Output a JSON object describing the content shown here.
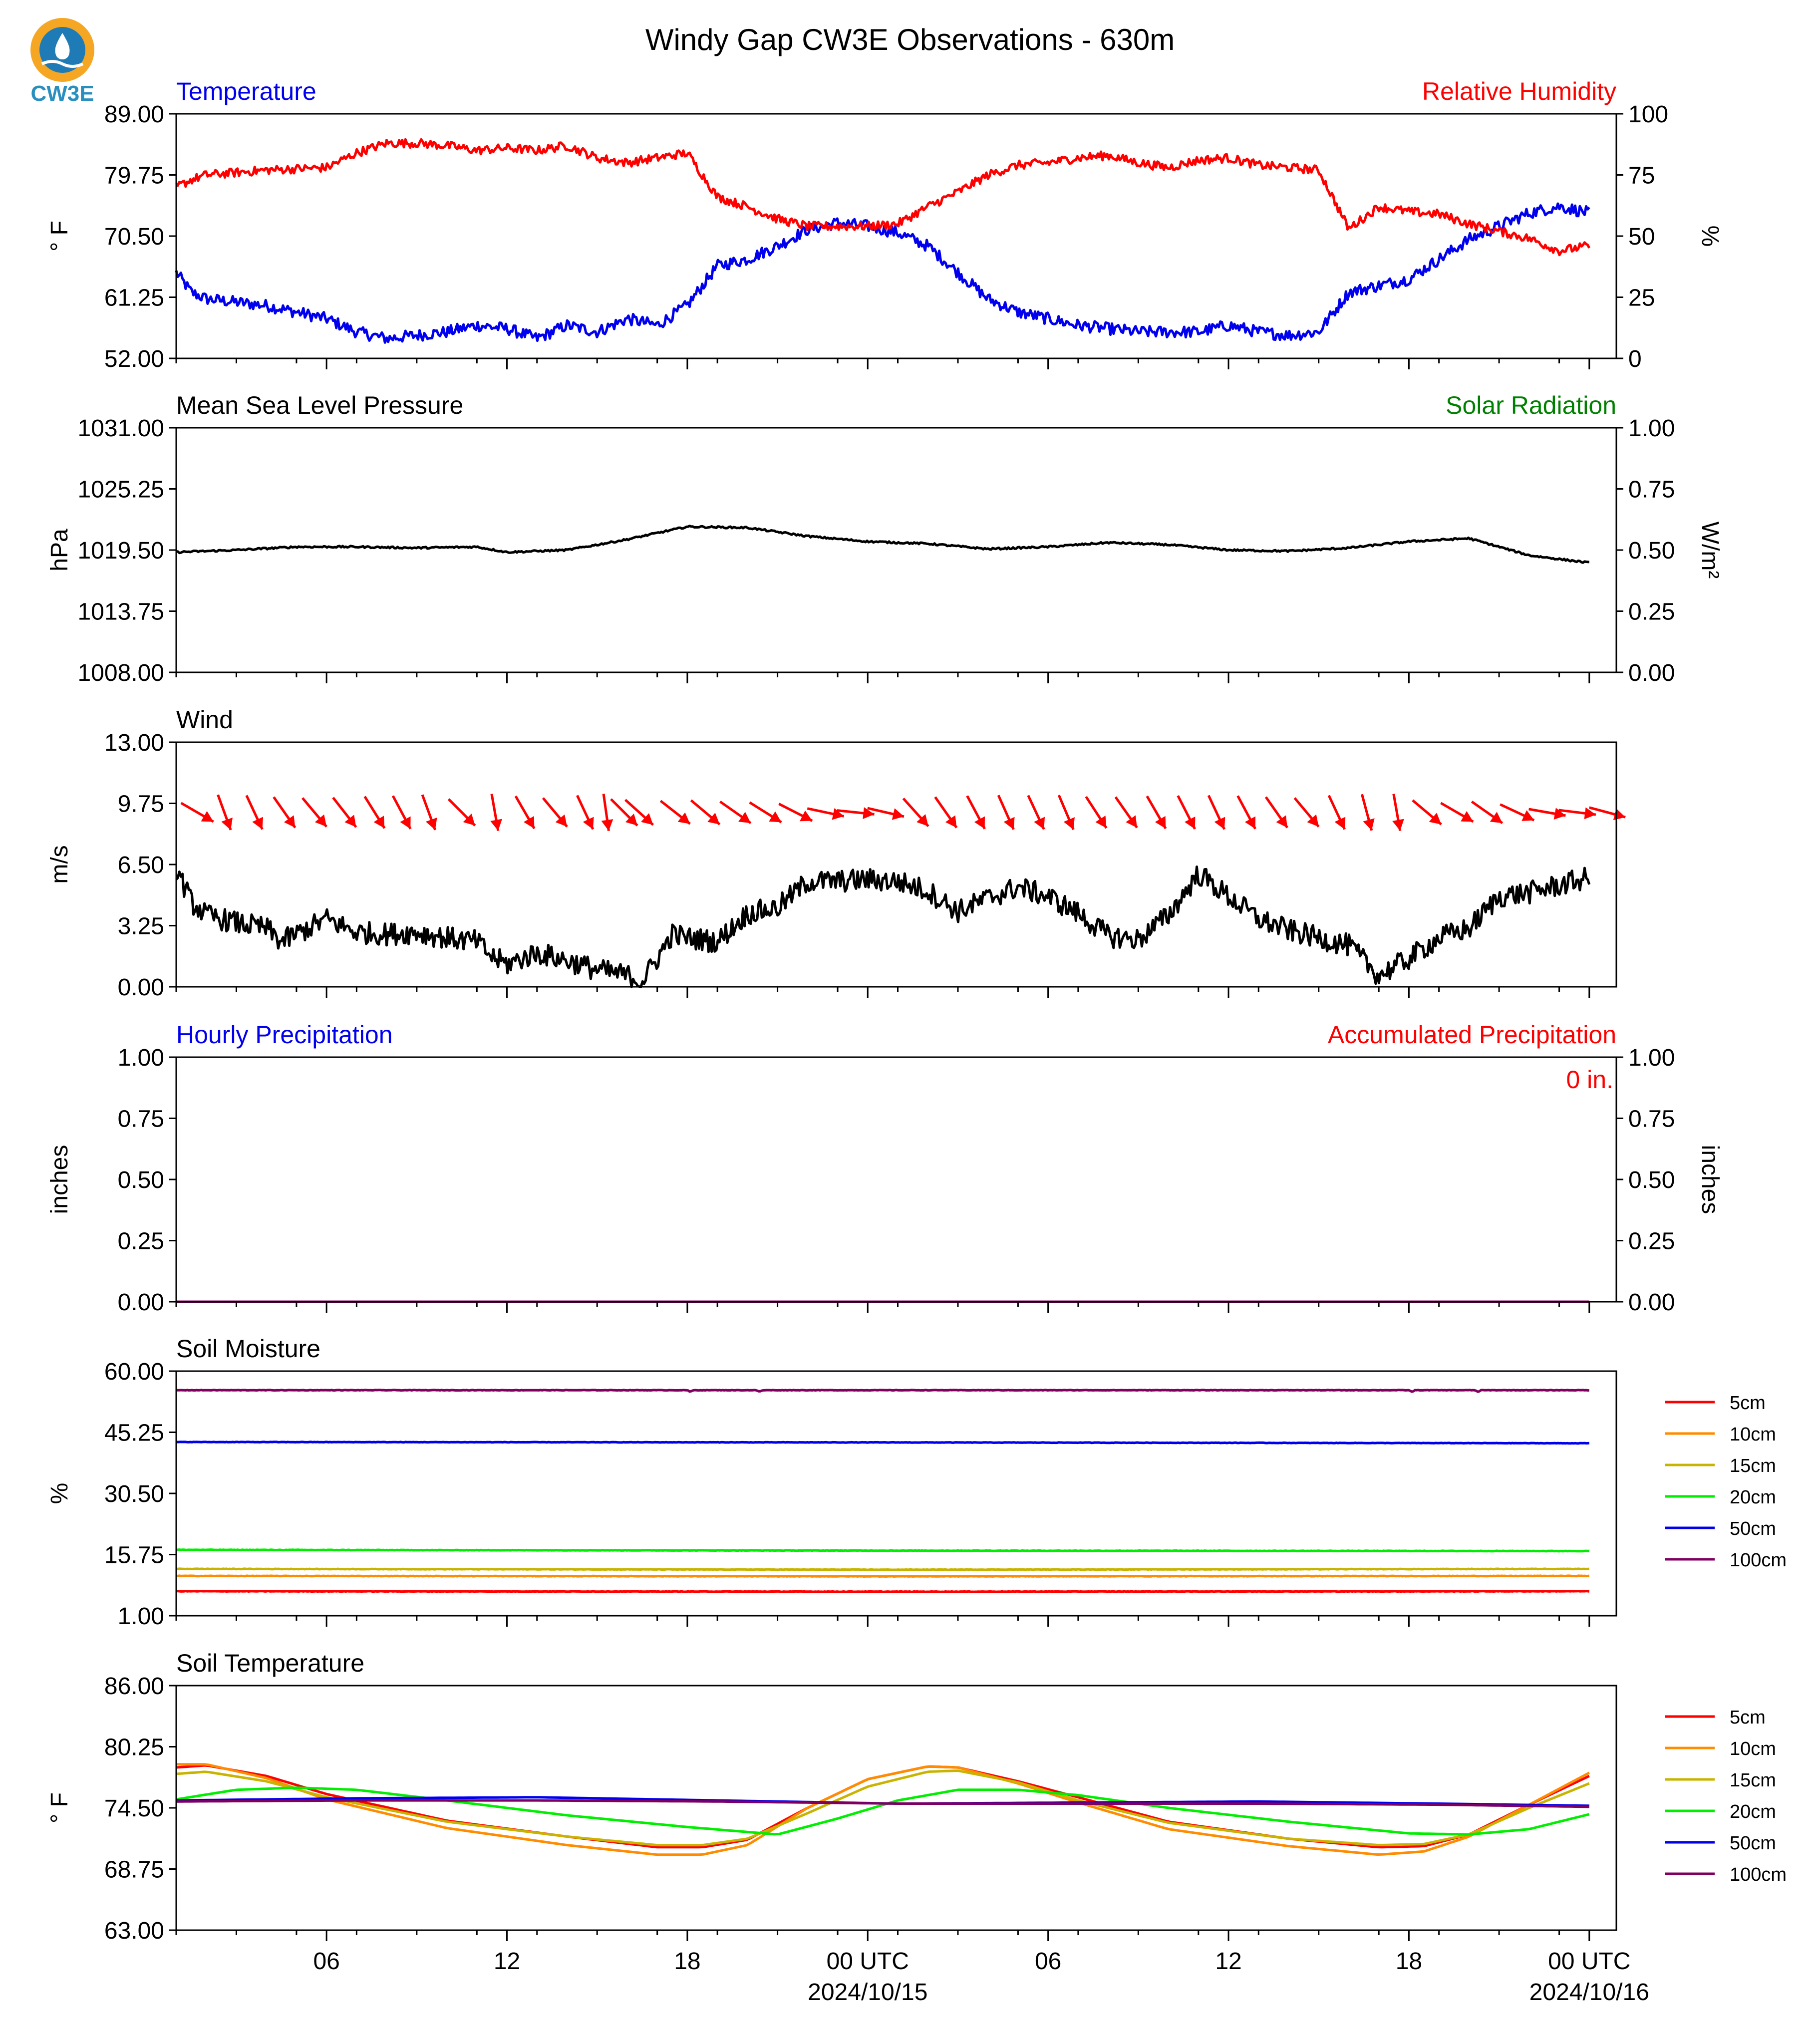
{
  "logo": {
    "text": "CW3E",
    "colors": {
      "ring": "#f5a623",
      "inner": "#1f7bb6",
      "text": "#2a8fbf"
    }
  },
  "title": "Windy Gap CW3E Observations - 630m",
  "colors": {
    "blue": "#0000ee",
    "red": "#ff0000",
    "green": "#008000",
    "black": "#000000",
    "soil": {
      "5cm": "#ff0000",
      "10cm": "#ff8c00",
      "15cm": "#c8b400",
      "20cm": "#00ee00",
      "50cm": "#0000ee",
      "100cm": "#800060"
    }
  },
  "time_axis": {
    "start_hour": 0,
    "end_hour": 47.9,
    "tick_labels": [
      {
        "hour": 5,
        "label": "06"
      },
      {
        "hour": 11,
        "label": "12"
      },
      {
        "hour": 17,
        "label": "18"
      },
      {
        "hour": 23,
        "label": "00 UTC",
        "date": "2024/10/15"
      },
      {
        "hour": 29,
        "label": "06"
      },
      {
        "hour": 35,
        "label": "12"
      },
      {
        "hour": 41,
        "label": "18"
      },
      {
        "hour": 47,
        "label": "00 UTC",
        "date": "2024/10/16"
      }
    ]
  },
  "chart_data": [
    {
      "id": "temp_rh",
      "type": "line",
      "title_left": "Temperature",
      "title_right": "Relative Humidity",
      "ylabel_left": "° F",
      "ylabel_right": "%",
      "ylim_left": [
        52,
        89
      ],
      "yticks_left": [
        "52.00",
        "61.25",
        "70.50",
        "79.75",
        "89.00"
      ],
      "ylim_right": [
        0,
        100
      ],
      "yticks_right": [
        "0",
        "25",
        "50",
        "75",
        "100"
      ],
      "series": [
        {
          "name": "Temperature",
          "color": "#0000ee",
          "axis": "left",
          "noise": 0.9,
          "x": [
            0,
            0.5,
            1,
            2,
            3,
            4,
            5,
            6,
            7,
            8,
            9,
            10,
            11,
            12,
            13,
            14,
            15,
            16,
            17,
            18,
            19,
            20,
            21,
            22,
            23,
            24,
            25,
            26,
            27,
            28,
            29,
            30,
            31,
            32,
            33,
            34,
            35,
            36,
            37,
            38,
            39,
            40,
            41,
            42,
            43,
            44,
            45,
            46,
            47
          ],
          "y": [
            65,
            62,
            61,
            60.5,
            60,
            59,
            58,
            56,
            55,
            55.5,
            56,
            57,
            56.5,
            55,
            57,
            56,
            58,
            57,
            60,
            66,
            67,
            69,
            71.5,
            72.5,
            72,
            71,
            69,
            65,
            61,
            59,
            58,
            57,
            56.5,
            56,
            56,
            56,
            57,
            56,
            55.5,
            56,
            62,
            63,
            64,
            67,
            70,
            72,
            74,
            75,
            74
          ]
        },
        {
          "name": "Relative Humidity",
          "color": "#ff0000",
          "axis": "right",
          "noise": 1.8,
          "x": [
            0,
            0.5,
            1,
            2,
            3,
            4,
            5,
            6,
            7,
            8,
            9,
            10,
            11,
            12,
            13,
            14,
            15,
            16,
            17,
            18,
            19,
            20,
            21,
            22,
            23,
            24,
            25,
            26,
            27,
            28,
            29,
            30,
            31,
            32,
            33,
            34,
            35,
            36,
            37,
            38,
            39,
            40,
            41,
            42,
            43,
            44,
            45,
            46,
            47
          ],
          "y": [
            70,
            73,
            75,
            76,
            77,
            77.5,
            78,
            84,
            88,
            88,
            87,
            85,
            86,
            85,
            87,
            82,
            80,
            82,
            84,
            66,
            62,
            57,
            54,
            54,
            54,
            55,
            62,
            68,
            75,
            79,
            80,
            82,
            83,
            80,
            78,
            81,
            82,
            79,
            78,
            77,
            53,
            62,
            60,
            59,
            55,
            52,
            49,
            44,
            46
          ]
        }
      ]
    },
    {
      "id": "pressure",
      "type": "line",
      "title_left": "Mean Sea Level Pressure",
      "title_right": "Solar Radiation",
      "ylabel_left": "hPa",
      "ylabel_right": "W/m²",
      "ylim_left": [
        1008,
        1031
      ],
      "yticks_left": [
        "1008.00",
        "1013.75",
        "1019.50",
        "1025.25",
        "1031.00"
      ],
      "ylim_right": [
        0,
        1
      ],
      "yticks_right": [
        "0.00",
        "0.25",
        "0.50",
        "0.75",
        "1.00"
      ],
      "series": [
        {
          "name": "Mean Sea Level Pressure",
          "color": "#000000",
          "axis": "left",
          "noise": 0.08,
          "x": [
            0,
            2,
            4,
            6,
            8,
            10,
            11,
            13,
            15,
            17,
            19,
            21,
            23,
            25,
            27,
            29,
            31,
            33,
            35,
            37,
            39,
            41,
            43,
            45,
            47
          ],
          "y": [
            1019.3,
            1019.5,
            1019.8,
            1019.8,
            1019.7,
            1019.8,
            1019.3,
            1019.5,
            1020.5,
            1021.7,
            1021.6,
            1020.8,
            1020.3,
            1020.1,
            1019.6,
            1019.8,
            1020.2,
            1020.0,
            1019.5,
            1019.4,
            1019.7,
            1020.3,
            1020.6,
            1019.0,
            1018.3
          ]
        }
      ]
    },
    {
      "id": "wind",
      "type": "line",
      "title_left": "Wind",
      "ylabel_left": "m/s",
      "ylim_left": [
        0,
        13
      ],
      "yticks_left": [
        "0.00",
        "3.25",
        "6.50",
        "9.75",
        "13.00"
      ],
      "series": [
        {
          "name": "Wind",
          "color": "#000000",
          "axis": "left",
          "noise": 0.6,
          "x": [
            0,
            0.5,
            1,
            2,
            3,
            3.5,
            4,
            4.5,
            5,
            6,
            7,
            8,
            9,
            10,
            10.5,
            11,
            12,
            13,
            14,
            15,
            15.5,
            16,
            16.5,
            17,
            18,
            19,
            20,
            21,
            22,
            23,
            24,
            25,
            26,
            27,
            28,
            29,
            30,
            31,
            32,
            33,
            34,
            35,
            36,
            37,
            38,
            39,
            40,
            41,
            42,
            43,
            44,
            45,
            46,
            47
          ],
          "y": [
            6.3,
            4.5,
            3.8,
            3.4,
            3.1,
            2.4,
            2.8,
            3.2,
            3.6,
            2.9,
            2.8,
            2.9,
            2.6,
            2.4,
            1.6,
            1.2,
            1.8,
            1.4,
            0.9,
            0.6,
            0.3,
            1.5,
            2.8,
            2.6,
            2.4,
            3.9,
            4.2,
            5.6,
            5.6,
            5.7,
            5.6,
            5.1,
            4.0,
            4.7,
            5.3,
            4.8,
            3.9,
            2.7,
            2.5,
            3.8,
            6.0,
            4.8,
            3.6,
            3.0,
            2.6,
            2.2,
            0.6,
            1.5,
            2.6,
            3.1,
            4.8,
            5.0,
            5.4,
            5.8
          ]
        }
      ],
      "barbs": {
        "color": "#ff0000",
        "speed": 9.75,
        "x": [
          0.7,
          1.6,
          2.6,
          3.6,
          4.6,
          5.6,
          6.6,
          7.5,
          8.4,
          9.5,
          10.6,
          11.6,
          12.6,
          13.6,
          14.3,
          14.9,
          15.4,
          16.6,
          17.6,
          18.6,
          19.6,
          20.6,
          21.6,
          22.6,
          23.6,
          24.6,
          25.6,
          26.6,
          27.6,
          28.6,
          29.6,
          30.6,
          31.6,
          32.6,
          33.6,
          34.6,
          35.6,
          36.6,
          37.6,
          38.6,
          39.6,
          40.6,
          41.6,
          42.6,
          43.6,
          44.6,
          45.6,
          46.6,
          47.6
        ],
        "dir_deg": [
          300,
          340,
          335,
          325,
          320,
          322,
          328,
          332,
          340,
          315,
          350,
          330,
          320,
          335,
          352,
          315,
          312,
          308,
          310,
          305,
          302,
          297,
          282,
          276,
          283,
          318,
          325,
          332,
          336,
          335,
          337,
          327,
          325,
          330,
          333,
          335,
          332,
          325,
          320,
          335,
          345,
          350,
          310,
          300,
          305,
          295,
          280,
          277,
          285
        ]
      }
    },
    {
      "id": "precip",
      "type": "line",
      "title_left": "Hourly Precipitation",
      "title_right": "Accumulated Precipitation",
      "ylabel_left": "inches",
      "ylabel_right": "inches",
      "ylim_left": [
        0,
        1
      ],
      "yticks_left": [
        "0.00",
        "0.25",
        "0.50",
        "0.75",
        "1.00"
      ],
      "ylim_right": [
        0,
        1
      ],
      "yticks_right": [
        "0.00",
        "0.25",
        "0.50",
        "0.75",
        "1.00"
      ],
      "annotation": "0 in.",
      "series": [
        {
          "name": "Hourly Precipitation",
          "color": "#800060",
          "axis": "left",
          "noise": 0,
          "x": [
            0,
            47
          ],
          "y": [
            0,
            0
          ]
        }
      ]
    },
    {
      "id": "soil_moisture",
      "type": "line",
      "title_left": "Soil Moisture",
      "ylabel_left": "%",
      "ylim_left": [
        1,
        60
      ],
      "yticks_left": [
        "1.00",
        "15.75",
        "30.50",
        "45.25",
        "60.00"
      ],
      "legend": [
        "5cm",
        "10cm",
        "15cm",
        "20cm",
        "50cm",
        "100cm"
      ],
      "series": [
        {
          "name": "5cm",
          "color": "#ff0000",
          "axis": "left",
          "noise": 0.05,
          "x": [
            0,
            24,
            47
          ],
          "y": [
            6.9,
            6.8,
            6.9
          ]
        },
        {
          "name": "10cm",
          "color": "#ff8c00",
          "axis": "left",
          "noise": 0.05,
          "x": [
            0,
            24,
            47
          ],
          "y": [
            10.6,
            10.5,
            10.6
          ]
        },
        {
          "name": "15cm",
          "color": "#c8b400",
          "axis": "left",
          "noise": 0.05,
          "x": [
            0,
            24,
            47
          ],
          "y": [
            12.3,
            12.1,
            12.3
          ]
        },
        {
          "name": "20cm",
          "color": "#00ee00",
          "axis": "left",
          "noise": 0.05,
          "x": [
            0,
            24,
            47
          ],
          "y": [
            16.9,
            16.7,
            16.6
          ]
        },
        {
          "name": "50cm",
          "color": "#0000ee",
          "axis": "left",
          "noise": 0.05,
          "x": [
            0,
            24,
            47
          ],
          "y": [
            42.9,
            42.8,
            42.6
          ]
        },
        {
          "name": "100cm",
          "color": "#800060",
          "axis": "left",
          "noise": 0.05,
          "x": [
            0,
            17,
            17.1,
            17.2,
            19.3,
            19.4,
            19.5,
            41,
            41.1,
            41.2,
            43.2,
            43.3,
            43.4,
            47
          ],
          "y": [
            55.4,
            55.4,
            55.0,
            55.4,
            55.4,
            55.0,
            55.4,
            55.4,
            55.0,
            55.4,
            55.4,
            55.0,
            55.4,
            55.4
          ]
        }
      ]
    },
    {
      "id": "soil_temperature",
      "type": "line",
      "title_left": "Soil Temperature",
      "ylabel_left": "° F",
      "ylim_left": [
        63,
        86
      ],
      "yticks_left": [
        "63.00",
        "68.75",
        "74.50",
        "80.25",
        "86.00"
      ],
      "legend": [
        "5cm",
        "10cm",
        "15cm",
        "20cm",
        "50cm",
        "100cm"
      ],
      "series": [
        {
          "name": "5cm",
          "color": "#ff0000",
          "axis": "left",
          "noise": 0,
          "x": [
            0,
            1,
            3,
            5,
            9,
            13,
            16,
            17.5,
            19,
            21,
            23,
            25,
            26,
            28,
            30,
            33,
            37,
            40,
            41.5,
            43,
            45,
            47
          ],
          "y": [
            78.3,
            78.5,
            77.5,
            75.8,
            73.3,
            71.8,
            70.8,
            70.8,
            71.5,
            74.5,
            77.2,
            78.4,
            78.3,
            77.0,
            75.5,
            73.2,
            71.6,
            70.8,
            70.9,
            72.0,
            74.8,
            77.5
          ]
        },
        {
          "name": "10cm",
          "color": "#ff8c00",
          "axis": "left",
          "noise": 0,
          "x": [
            0,
            1,
            3,
            5,
            9,
            13,
            16,
            17.5,
            19,
            21,
            23,
            25,
            26,
            28,
            30,
            33,
            37,
            40,
            41.5,
            43,
            45,
            47
          ],
          "y": [
            78.6,
            78.6,
            77.3,
            75.3,
            72.6,
            71.0,
            70.1,
            70.1,
            71.0,
            74.5,
            77.2,
            78.4,
            78.3,
            76.8,
            75.0,
            72.5,
            70.9,
            70.1,
            70.4,
            71.8,
            74.8,
            77.8
          ]
        },
        {
          "name": "15cm",
          "color": "#c8b400",
          "axis": "left",
          "noise": 0,
          "x": [
            0,
            1,
            3,
            5,
            9,
            13,
            16,
            17.5,
            19,
            21,
            23,
            25,
            26,
            28,
            30,
            33,
            37,
            40,
            41.5,
            43,
            45,
            47
          ],
          "y": [
            77.7,
            77.9,
            77.0,
            75.5,
            73.2,
            71.8,
            71.0,
            71.0,
            71.6,
            74.0,
            76.5,
            77.9,
            78.0,
            76.9,
            75.2,
            73.1,
            71.6,
            71.0,
            71.1,
            72.0,
            74.5,
            76.8
          ]
        },
        {
          "name": "20cm",
          "color": "#00ee00",
          "axis": "left",
          "noise": 0,
          "x": [
            0,
            2,
            4,
            6,
            9,
            13,
            17,
            20,
            22,
            24,
            26,
            28,
            30,
            33,
            37,
            41,
            43,
            45,
            47
          ],
          "y": [
            75.3,
            76.2,
            76.4,
            76.2,
            75.2,
            73.8,
            72.7,
            72.0,
            73.5,
            75.2,
            76.2,
            76.2,
            75.7,
            74.5,
            73.2,
            72.1,
            72.0,
            72.5,
            73.9
          ]
        },
        {
          "name": "50cm",
          "color": "#0000ee",
          "axis": "left",
          "noise": 0,
          "x": [
            0,
            6,
            12,
            18,
            24,
            30,
            36,
            42,
            47
          ],
          "y": [
            75.2,
            75.4,
            75.5,
            75.2,
            74.9,
            75.0,
            75.1,
            74.9,
            74.7
          ]
        },
        {
          "name": "100cm",
          "color": "#800060",
          "axis": "left",
          "noise": 0,
          "x": [
            0,
            6,
            12,
            18,
            24,
            30,
            36,
            42,
            47
          ],
          "y": [
            75.1,
            75.2,
            75.2,
            75.1,
            74.9,
            74.9,
            74.9,
            74.8,
            74.6
          ]
        }
      ]
    }
  ]
}
